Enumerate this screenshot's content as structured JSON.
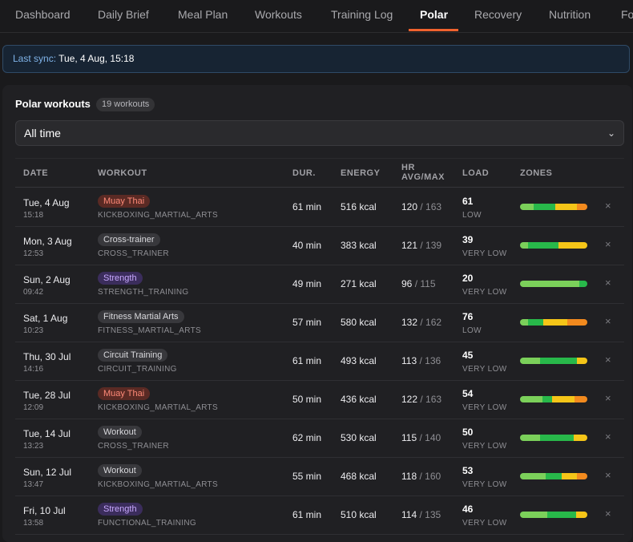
{
  "tabs": [
    "Dashboard",
    "Daily Brief",
    "Meal Plan",
    "Workouts",
    "Training Log",
    "Polar",
    "Recovery",
    "Nutrition",
    "Fo"
  ],
  "active_tab": "Polar",
  "sync": {
    "label": "Last sync:",
    "value": "Tue, 4 Aug, 15:18"
  },
  "panel": {
    "title": "Polar workouts",
    "count": "19 workouts"
  },
  "filter": {
    "selected": "All time"
  },
  "columns": {
    "date": "DATE",
    "workout": "WORKOUT",
    "dur": "DUR.",
    "energy": "ENERGY",
    "hr1": "HR",
    "hr2": "AVG/MAX",
    "load": "LOAD",
    "zones": "ZONES"
  },
  "zone_colors": [
    "#7bd05a",
    "#28b84a",
    "#f5c518",
    "#f28a1e"
  ],
  "badge_styles": {
    "muay-thai": {
      "bg": "#5a2a24",
      "fg": "#ff8a78"
    },
    "neutral": {
      "bg": "#38383c",
      "fg": "#d8d8dc"
    },
    "strength": {
      "bg": "#3b2d5c",
      "fg": "#c8a8ff"
    }
  },
  "rows": [
    {
      "date": "Tue, 4 Aug",
      "time": "15:18",
      "name": "Muay Thai",
      "style": "muay-thai",
      "type": "KICKBOXING_MARTIAL_ARTS",
      "dur": "61 min",
      "energy": "516 kcal",
      "hr_avg": "120",
      "hr_max": "/ 163",
      "load": "61",
      "load_label": "LOW",
      "zones": [
        0.2,
        0.32,
        0.33,
        0.15
      ]
    },
    {
      "date": "Mon, 3 Aug",
      "time": "12:53",
      "name": "Cross-trainer",
      "style": "neutral",
      "type": "CROSS_TRAINER",
      "dur": "40 min",
      "energy": "383 kcal",
      "hr_avg": "121",
      "hr_max": "/ 139",
      "load": "39",
      "load_label": "VERY LOW",
      "zones": [
        0.12,
        0.45,
        0.43,
        0
      ]
    },
    {
      "date": "Sun, 2 Aug",
      "time": "09:42",
      "name": "Strength",
      "style": "strength",
      "type": "STRENGTH_TRAINING",
      "dur": "49 min",
      "energy": "271 kcal",
      "hr_avg": "96",
      "hr_max": "/ 115",
      "load": "20",
      "load_label": "VERY LOW",
      "zones": [
        0.88,
        0.12,
        0,
        0
      ]
    },
    {
      "date": "Sat, 1 Aug",
      "time": "10:23",
      "name": "Fitness Martial Arts",
      "style": "neutral",
      "type": "FITNESS_MARTIAL_ARTS",
      "dur": "57 min",
      "energy": "580 kcal",
      "hr_avg": "132",
      "hr_max": "/ 162",
      "load": "76",
      "load_label": "LOW",
      "zones": [
        0.12,
        0.23,
        0.35,
        0.3
      ]
    },
    {
      "date": "Thu, 30 Jul",
      "time": "14:16",
      "name": "Circuit Training",
      "style": "neutral",
      "type": "CIRCUIT_TRAINING",
      "dur": "61 min",
      "energy": "493 kcal",
      "hr_avg": "113",
      "hr_max": "/ 136",
      "load": "45",
      "load_label": "VERY LOW",
      "zones": [
        0.3,
        0.55,
        0.15,
        0
      ]
    },
    {
      "date": "Tue, 28 Jul",
      "time": "12:09",
      "name": "Muay Thai",
      "style": "muay-thai",
      "type": "KICKBOXING_MARTIAL_ARTS",
      "dur": "50 min",
      "energy": "436 kcal",
      "hr_avg": "122",
      "hr_max": "/ 163",
      "load": "54",
      "load_label": "VERY LOW",
      "zones": [
        0.33,
        0.15,
        0.33,
        0.19
      ]
    },
    {
      "date": "Tue, 14 Jul",
      "time": "13:23",
      "name": "Workout",
      "style": "neutral",
      "type": "CROSS_TRAINER",
      "dur": "62 min",
      "energy": "530 kcal",
      "hr_avg": "115",
      "hr_max": "/ 140",
      "load": "50",
      "load_label": "VERY LOW",
      "zones": [
        0.3,
        0.5,
        0.2,
        0
      ]
    },
    {
      "date": "Sun, 12 Jul",
      "time": "13:47",
      "name": "Workout",
      "style": "neutral",
      "type": "KICKBOXING_MARTIAL_ARTS",
      "dur": "55 min",
      "energy": "468 kcal",
      "hr_avg": "118",
      "hr_max": "/ 160",
      "load": "53",
      "load_label": "VERY LOW",
      "zones": [
        0.38,
        0.24,
        0.22,
        0.16
      ]
    },
    {
      "date": "Fri, 10 Jul",
      "time": "13:58",
      "name": "Strength",
      "style": "strength",
      "type": "FUNCTIONAL_TRAINING",
      "dur": "61 min",
      "energy": "510 kcal",
      "hr_avg": "114",
      "hr_max": "/ 135",
      "load": "46",
      "load_label": "VERY LOW",
      "zones": [
        0.4,
        0.43,
        0.17,
        0
      ]
    }
  ],
  "close_glyph": "×",
  "chevron_glyph": "⌄"
}
